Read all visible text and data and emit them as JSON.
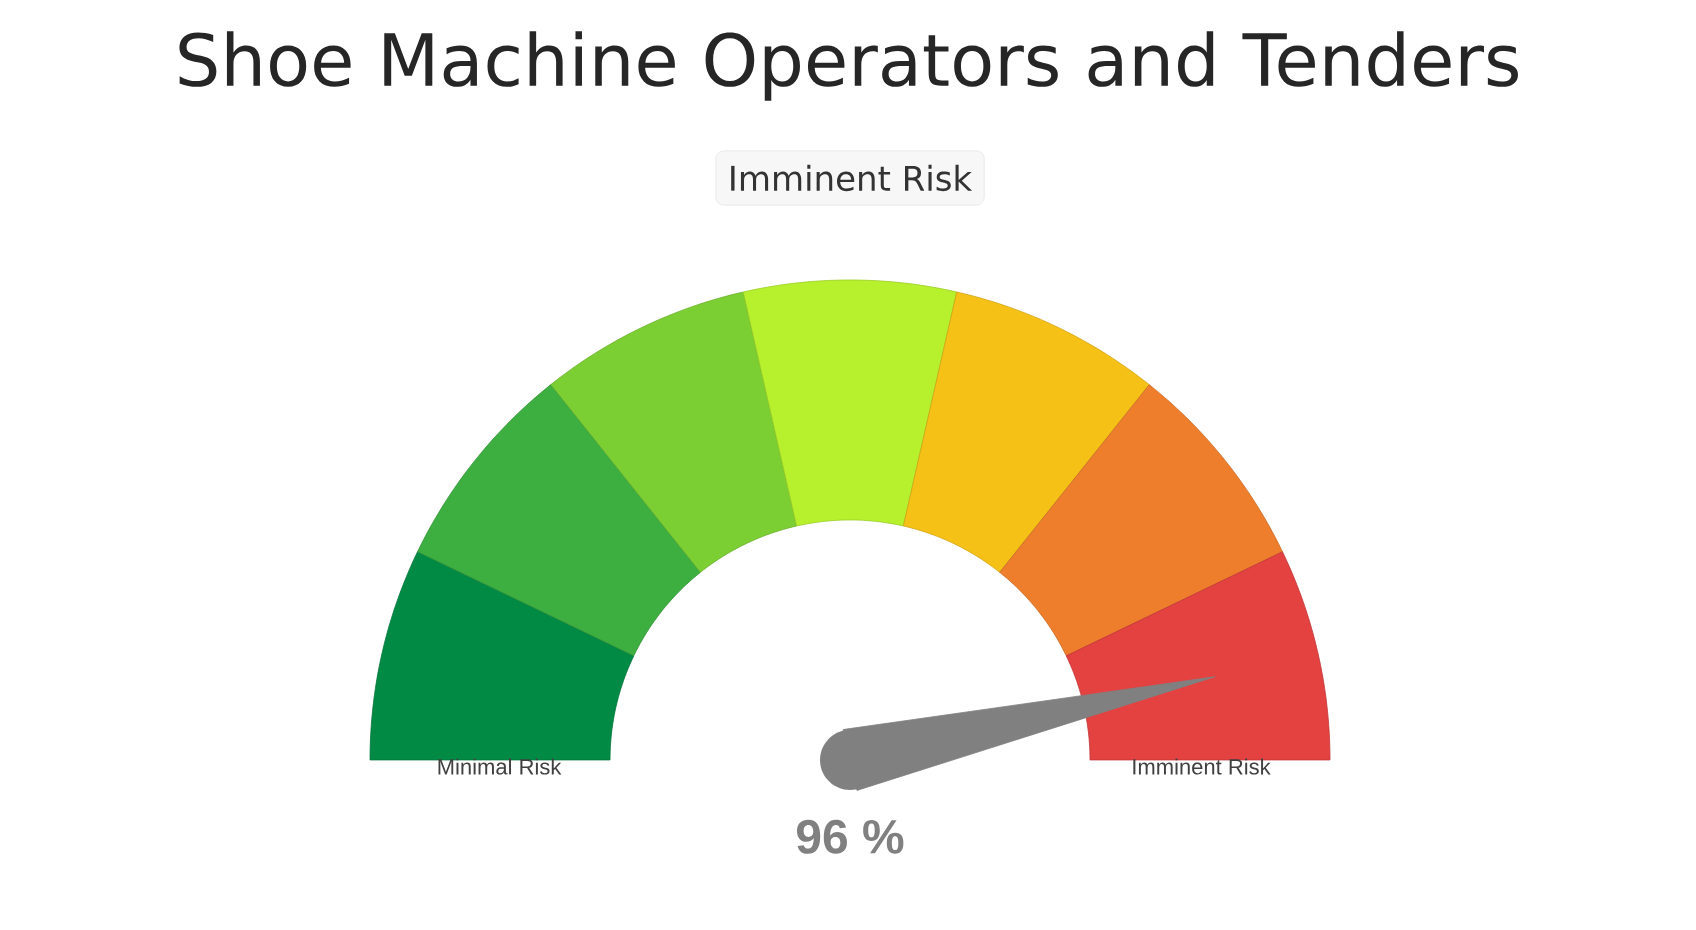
{
  "chart_data": {
    "type": "donut",
    "title": "Shoe Machine Operators and Tenders",
    "subtitle": "Imminent Risk",
    "categories": [
      "Minimal Risk",
      null,
      null,
      null,
      null,
      null,
      "Imminent Risk"
    ],
    "values": [
      14.29,
      14.29,
      14.28,
      14.28,
      14.29,
      14.29,
      14.28
    ],
    "colors": [
      "#008a44",
      "#3dae40",
      "#7ccf33",
      "#b7f12d",
      "#f6c117",
      "#ee7e2c",
      "#e44141"
    ],
    "needle": "Imminent Risk",
    "annotations": [
      "96 %"
    ]
  }
}
